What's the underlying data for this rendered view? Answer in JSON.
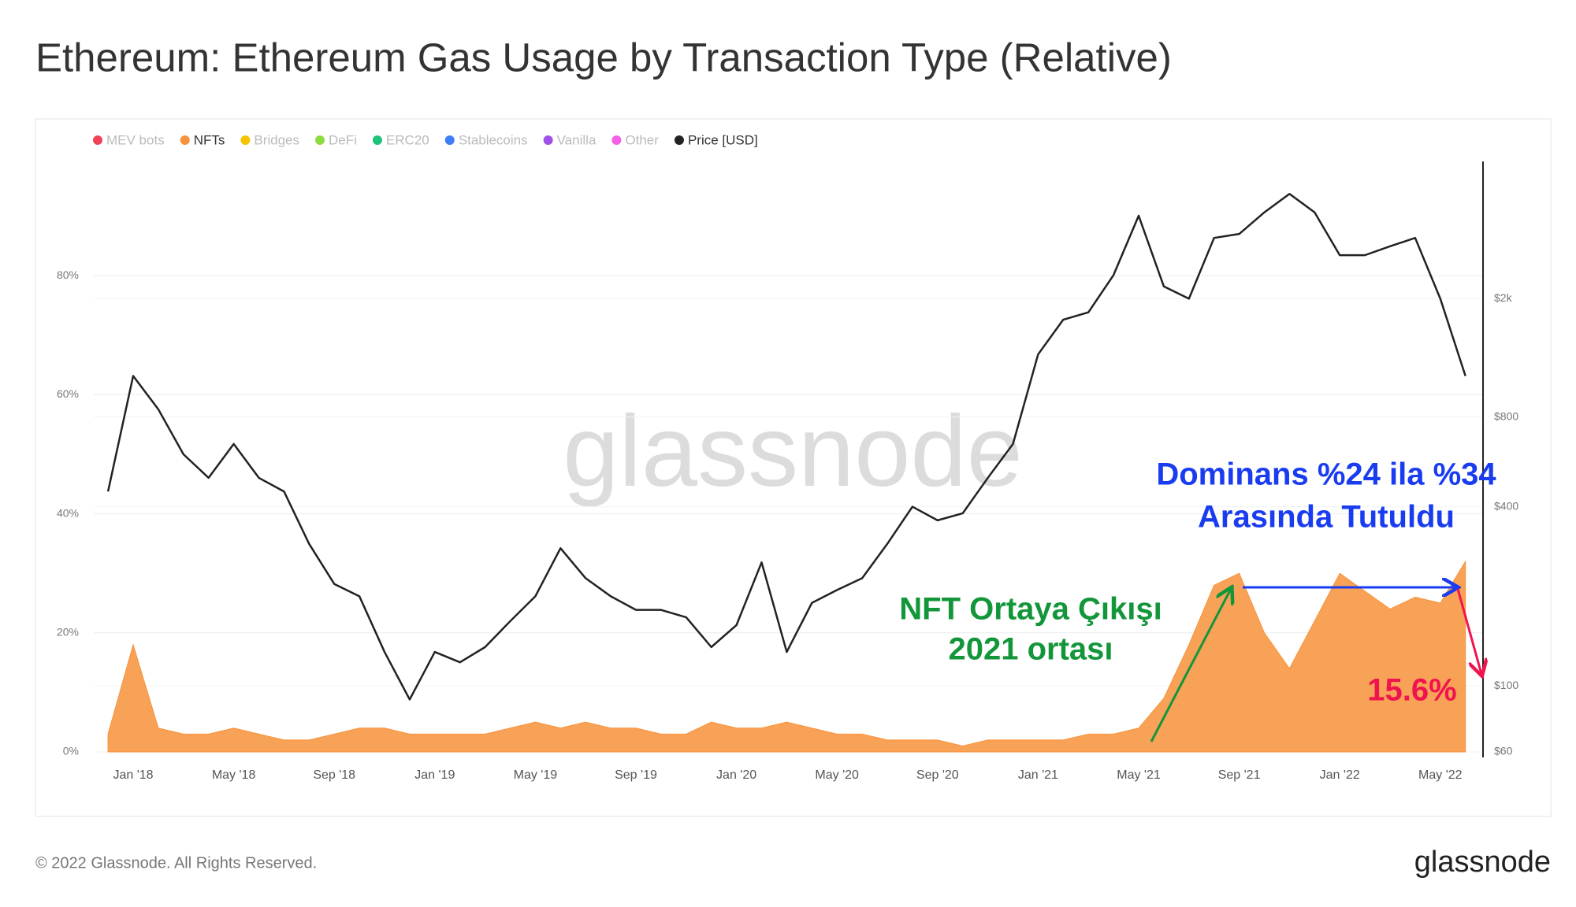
{
  "chart_data": {
    "type": "area-line",
    "title": "Ethereum: Ethereum Gas Usage by Transaction Type (Relative)",
    "footer": "© 2022 Glassnode. All Rights Reserved.",
    "logo": "glassnode",
    "watermark": "glassnode",
    "x": [
      "2017-12",
      "2018-01",
      "2018-02",
      "2018-03",
      "2018-04",
      "2018-05",
      "2018-06",
      "2018-07",
      "2018-08",
      "2018-09",
      "2018-10",
      "2018-11",
      "2018-12",
      "2019-01",
      "2019-02",
      "2019-03",
      "2019-04",
      "2019-05",
      "2019-06",
      "2019-07",
      "2019-08",
      "2019-09",
      "2019-10",
      "2019-11",
      "2019-12",
      "2020-01",
      "2020-02",
      "2020-03",
      "2020-04",
      "2020-05",
      "2020-06",
      "2020-07",
      "2020-08",
      "2020-09",
      "2020-10",
      "2020-11",
      "2020-12",
      "2021-01",
      "2021-02",
      "2021-03",
      "2021-04",
      "2021-05",
      "2021-06",
      "2021-07",
      "2021-08",
      "2021-09",
      "2021-10",
      "2021-11",
      "2021-12",
      "2022-01",
      "2022-02",
      "2022-03",
      "2022-04",
      "2022-05",
      "2022-06"
    ],
    "series": [
      {
        "name": "NFTs",
        "color": "#f7923a",
        "values": [
          3,
          18,
          4,
          3,
          3,
          4,
          3,
          2,
          2,
          3,
          4,
          4,
          3,
          3,
          3,
          3,
          4,
          5,
          4,
          5,
          4,
          4,
          3,
          3,
          5,
          4,
          4,
          5,
          4,
          3,
          3,
          2,
          2,
          2,
          1,
          2,
          2,
          2,
          2,
          3,
          3,
          4,
          9,
          18,
          28,
          30,
          20,
          14,
          22,
          30,
          27,
          24,
          26,
          25,
          32
        ]
      },
      {
        "name": "Price [USD]",
        "color": "#222222",
        "axis": "y2",
        "values": [
          450,
          1100,
          850,
          600,
          500,
          650,
          500,
          450,
          300,
          220,
          200,
          130,
          90,
          130,
          120,
          135,
          165,
          200,
          290,
          230,
          200,
          180,
          180,
          170,
          135,
          160,
          260,
          130,
          190,
          210,
          230,
          300,
          400,
          360,
          380,
          500,
          650,
          1300,
          1700,
          1800,
          2400,
          3800,
          2200,
          2000,
          3200,
          3300,
          3900,
          4500,
          3900,
          2800,
          2800,
          3000,
          3200,
          2000,
          1100
        ]
      }
    ],
    "inactive_series": [
      {
        "name": "MEV bots",
        "color": "#f0435a"
      },
      {
        "name": "Bridges",
        "color": "#f5c400"
      },
      {
        "name": "DeFi",
        "color": "#8bdc3c"
      },
      {
        "name": "ERC20",
        "color": "#1ec27a"
      },
      {
        "name": "Stablecoins",
        "color": "#3d7df5"
      },
      {
        "name": "Vanilla",
        "color": "#a050e8"
      },
      {
        "name": "Other",
        "color": "#f560e8"
      }
    ],
    "xticks": [
      {
        "value": "2018-01",
        "label": "Jan '18"
      },
      {
        "value": "2018-05",
        "label": "May '18"
      },
      {
        "value": "2018-09",
        "label": "Sep '18"
      },
      {
        "value": "2019-01",
        "label": "Jan '19"
      },
      {
        "value": "2019-05",
        "label": "May '19"
      },
      {
        "value": "2019-09",
        "label": "Sep '19"
      },
      {
        "value": "2020-01",
        "label": "Jan '20"
      },
      {
        "value": "2020-05",
        "label": "May '20"
      },
      {
        "value": "2020-09",
        "label": "Sep '20"
      },
      {
        "value": "2021-01",
        "label": "Jan '21"
      },
      {
        "value": "2021-05",
        "label": "May '21"
      },
      {
        "value": "2021-09",
        "label": "Sep '21"
      },
      {
        "value": "2022-01",
        "label": "Jan '22"
      },
      {
        "value": "2022-05",
        "label": "May '22"
      }
    ],
    "ylim": [
      0,
      100
    ],
    "yticks": [
      {
        "value": 0,
        "label": "0%"
      },
      {
        "value": 20,
        "label": "20%"
      },
      {
        "value": 40,
        "label": "40%"
      },
      {
        "value": 60,
        "label": "60%"
      },
      {
        "value": 80,
        "label": "80%"
      }
    ],
    "y2lim": [
      60,
      6000
    ],
    "y2_log": true,
    "y2ticks": [
      {
        "value": 60,
        "label": "$60"
      },
      {
        "value": 100,
        "label": "$100"
      },
      {
        "value": 400,
        "label": "$400"
      },
      {
        "value": 800,
        "label": "$800"
      },
      {
        "value": 2000,
        "label": "$2k"
      }
    ],
    "grid": true,
    "annotations": [
      {
        "lines": [
          "NFT Ortaya Çıkışı",
          "2021 ortası"
        ],
        "color": "#13963a"
      },
      {
        "lines": [
          "Dominans %24 ila %34",
          "Arasında Tutuldu"
        ],
        "color": "#1a3cf0"
      },
      {
        "lines": [
          "15.6%"
        ],
        "color": "#f0144e"
      }
    ]
  }
}
